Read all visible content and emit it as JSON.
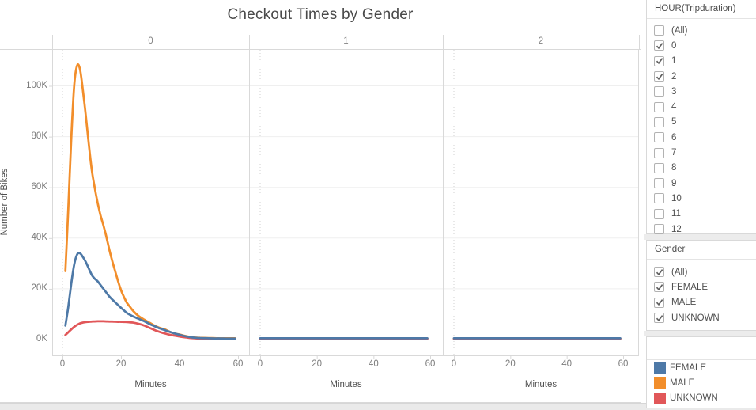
{
  "chart_data": {
    "type": "line",
    "title": "Checkout Times by Gender",
    "xlabel": "Minutes",
    "ylabel": "Number of Bikes",
    "xlim": [
      0,
      60
    ],
    "ylim_k": [
      0,
      115
    ],
    "grid": true,
    "legend_position": "bottom-right-card",
    "x_ticks": [
      {
        "value": 0,
        "label": "0"
      },
      {
        "value": 20,
        "label": "20"
      },
      {
        "value": 40,
        "label": "40"
      },
      {
        "value": 60,
        "label": "60"
      }
    ],
    "y_ticks": [
      {
        "value_k": 0,
        "label": "0K"
      },
      {
        "value_k": 20,
        "label": "20K"
      },
      {
        "value_k": 40,
        "label": "40K"
      },
      {
        "value_k": 60,
        "label": "60K"
      },
      {
        "value_k": 80,
        "label": "80K"
      },
      {
        "value_k": 100,
        "label": "100K"
      }
    ],
    "panels": [
      {
        "label": "0",
        "series": [
          {
            "name": "FEMALE",
            "color": "#4e79a7",
            "points_min_vs_k": [
              [
                1,
                5.5
              ],
              [
                2,
                13
              ],
              [
                3,
                22
              ],
              [
                4,
                29.5
              ],
              [
                5,
                33.5
              ],
              [
                6,
                34
              ],
              [
                7,
                32.5
              ],
              [
                8,
                30.5
              ],
              [
                9,
                28
              ],
              [
                10,
                25.5
              ],
              [
                11,
                24
              ],
              [
                12,
                23
              ],
              [
                13,
                21.5
              ],
              [
                14,
                20
              ],
              [
                15,
                18.5
              ],
              [
                16,
                17
              ],
              [
                17,
                15.8
              ],
              [
                18,
                14.7
              ],
              [
                19,
                13.6
              ],
              [
                20,
                12.5
              ],
              [
                21,
                11.5
              ],
              [
                22,
                10.5
              ],
              [
                23,
                9.8
              ],
              [
                24,
                9.2
              ],
              [
                25,
                8.7
              ],
              [
                26,
                8.2
              ],
              [
                27,
                7.7
              ],
              [
                28,
                7.2
              ],
              [
                29,
                6.6
              ],
              [
                30,
                6
              ],
              [
                31,
                5.5
              ],
              [
                32,
                5
              ],
              [
                33,
                4.5
              ],
              [
                34,
                4.1
              ],
              [
                35,
                3.7
              ],
              [
                36,
                3.3
              ],
              [
                37,
                2.9
              ],
              [
                38,
                2.5
              ],
              [
                39,
                2.2
              ],
              [
                40,
                1.9
              ],
              [
                41,
                1.6
              ],
              [
                42,
                1.3
              ],
              [
                43,
                1.1
              ],
              [
                44,
                0.9
              ],
              [
                45,
                0.75
              ],
              [
                46,
                0.65
              ],
              [
                47,
                0.6
              ],
              [
                48,
                0.55
              ],
              [
                50,
                0.5
              ],
              [
                52,
                0.45
              ],
              [
                54,
                0.45
              ],
              [
                56,
                0.4
              ],
              [
                58,
                0.4
              ],
              [
                59,
                0.4
              ]
            ]
          },
          {
            "name": "MALE",
            "color": "#f28e2b",
            "points_min_vs_k": [
              [
                1,
                27
              ],
              [
                2,
                52
              ],
              [
                3,
                79
              ],
              [
                4,
                100
              ],
              [
                5,
                108
              ],
              [
                6,
                106.5
              ],
              [
                7,
                98
              ],
              [
                8,
                88
              ],
              [
                9,
                77
              ],
              [
                10,
                67
              ],
              [
                11,
                60
              ],
              [
                12,
                54
              ],
              [
                13,
                49
              ],
              [
                14,
                45
              ],
              [
                15,
                40.5
              ],
              [
                16,
                35.5
              ],
              [
                17,
                31
              ],
              [
                18,
                27
              ],
              [
                19,
                23
              ],
              [
                20,
                19.5
              ],
              [
                21,
                16.8
              ],
              [
                22,
                14.5
              ],
              [
                23,
                13
              ],
              [
                24,
                11.5
              ],
              [
                25,
                10.3
              ],
              [
                26,
                9.3
              ],
              [
                27,
                8.5
              ],
              [
                28,
                7.8
              ],
              [
                29,
                7.1
              ],
              [
                30,
                6.5
              ],
              [
                31,
                5.8
              ],
              [
                32,
                5.2
              ],
              [
                33,
                4.7
              ],
              [
                34,
                4.3
              ],
              [
                35,
                4
              ],
              [
                36,
                3.4
              ],
              [
                37,
                2.9
              ],
              [
                38,
                2.5
              ],
              [
                39,
                2.2
              ],
              [
                40,
                2
              ],
              [
                41,
                1.7
              ],
              [
                42,
                1.4
              ],
              [
                43,
                1.2
              ],
              [
                44,
                1
              ],
              [
                45,
                0.85
              ],
              [
                46,
                0.75
              ],
              [
                47,
                0.7
              ],
              [
                48,
                0.65
              ],
              [
                50,
                0.6
              ],
              [
                52,
                0.55
              ],
              [
                54,
                0.5
              ],
              [
                56,
                0.5
              ],
              [
                58,
                0.5
              ],
              [
                59,
                0.5
              ]
            ]
          },
          {
            "name": "UNKNOWN",
            "color": "#e15759",
            "points_min_vs_k": [
              [
                1,
                1.8
              ],
              [
                2,
                2.9
              ],
              [
                3,
                4
              ],
              [
                4,
                5
              ],
              [
                5,
                5.8
              ],
              [
                6,
                6.4
              ],
              [
                7,
                6.7
              ],
              [
                8,
                6.9
              ],
              [
                9,
                7
              ],
              [
                10,
                7.1
              ],
              [
                11,
                7.15
              ],
              [
                12,
                7.2
              ],
              [
                13,
                7.2
              ],
              [
                14,
                7.2
              ],
              [
                15,
                7.15
              ],
              [
                16,
                7.1
              ],
              [
                17,
                7.1
              ],
              [
                18,
                7.05
              ],
              [
                19,
                7
              ],
              [
                20,
                7
              ],
              [
                21,
                6.95
              ],
              [
                22,
                6.9
              ],
              [
                23,
                6.8
              ],
              [
                24,
                6.7
              ],
              [
                25,
                6.5
              ],
              [
                26,
                6.2
              ],
              [
                27,
                5.9
              ],
              [
                28,
                5.5
              ],
              [
                29,
                5
              ],
              [
                30,
                4.5
              ],
              [
                31,
                4
              ],
              [
                32,
                3.5
              ],
              [
                33,
                3.1
              ],
              [
                34,
                2.7
              ],
              [
                35,
                2.4
              ],
              [
                36,
                2.1
              ],
              [
                37,
                1.8
              ],
              [
                38,
                1.6
              ],
              [
                39,
                1.4
              ],
              [
                40,
                1.2
              ],
              [
                41,
                1
              ],
              [
                42,
                0.85
              ],
              [
                43,
                0.7
              ],
              [
                44,
                0.6
              ],
              [
                45,
                0.5
              ],
              [
                46,
                0.45
              ],
              [
                47,
                0.4
              ],
              [
                48,
                0.4
              ],
              [
                50,
                0.35
              ],
              [
                52,
                0.3
              ],
              [
                54,
                0.3
              ],
              [
                56,
                0.3
              ],
              [
                58,
                0.3
              ],
              [
                59,
                0.3
              ]
            ]
          }
        ]
      },
      {
        "label": "1",
        "series": [
          {
            "name": "FEMALE",
            "color": "#4e79a7",
            "points_min_vs_k": [
              [
                0,
                0.5
              ],
              [
                59,
                0.5
              ]
            ]
          },
          {
            "name": "MALE",
            "color": "#f28e2b",
            "points_min_vs_k": [
              [
                0,
                0.4
              ],
              [
                59,
                0.4
              ]
            ]
          },
          {
            "name": "UNKNOWN",
            "color": "#e15759",
            "points_min_vs_k": [
              [
                0,
                0.3
              ],
              [
                59,
                0.3
              ]
            ]
          }
        ]
      },
      {
        "label": "2",
        "series": [
          {
            "name": "FEMALE",
            "color": "#4e79a7",
            "points_min_vs_k": [
              [
                0,
                0.5
              ],
              [
                59,
                0.5
              ]
            ]
          },
          {
            "name": "MALE",
            "color": "#f28e2b",
            "points_min_vs_k": [
              [
                0,
                0.4
              ],
              [
                59,
                0.4
              ]
            ]
          },
          {
            "name": "UNKNOWN",
            "color": "#e15759",
            "points_min_vs_k": [
              [
                0,
                0.3
              ],
              [
                59,
                0.3
              ]
            ]
          }
        ]
      }
    ]
  },
  "sidebar": {
    "hour_filter": {
      "title": "HOUR(Tripduration)",
      "items": [
        {
          "label": "(All)",
          "checked": false
        },
        {
          "label": "0",
          "checked": true
        },
        {
          "label": "1",
          "checked": true
        },
        {
          "label": "2",
          "checked": true
        },
        {
          "label": "3",
          "checked": false
        },
        {
          "label": "4",
          "checked": false
        },
        {
          "label": "5",
          "checked": false
        },
        {
          "label": "6",
          "checked": false
        },
        {
          "label": "7",
          "checked": false
        },
        {
          "label": "8",
          "checked": false
        },
        {
          "label": "9",
          "checked": false
        },
        {
          "label": "10",
          "checked": false
        },
        {
          "label": "11",
          "checked": false
        },
        {
          "label": "12",
          "checked": false
        }
      ]
    },
    "gender_filter": {
      "title": "Gender",
      "items": [
        {
          "label": "(All)",
          "checked": true
        },
        {
          "label": "FEMALE",
          "checked": true
        },
        {
          "label": "MALE",
          "checked": true
        },
        {
          "label": "UNKNOWN",
          "checked": true
        }
      ]
    },
    "legend": {
      "items": [
        {
          "label": "FEMALE",
          "color": "#4e79a7"
        },
        {
          "label": "MALE",
          "color": "#f28e2b"
        },
        {
          "label": "UNKNOWN",
          "color": "#e15759"
        }
      ]
    }
  },
  "colors": {
    "female": "#4e79a7",
    "male": "#f28e2b",
    "unknown": "#e15759",
    "grid": "#efefef",
    "axis": "#d9d9d9"
  }
}
